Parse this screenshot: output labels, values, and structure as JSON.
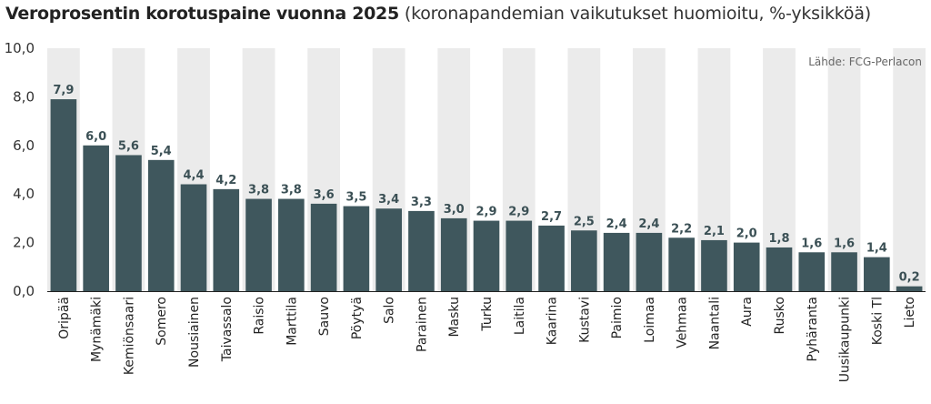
{
  "chart_data": {
    "type": "bar",
    "title": "Veroprosentin korotuspaine vuonna 2025",
    "subtitle": "(koronapandemian vaikutukset huomioitu, %-yksikköä)",
    "source": "Lähde: FCG-Perlacon",
    "categories": [
      "Oripää",
      "Mynämäki",
      "Kemiönsaari",
      "Somero",
      "Nousiainen",
      "Taivassalo",
      "Raisio",
      "Marttila",
      "Sauvo",
      "Pöytyä",
      "Salo",
      "Parainen",
      "Masku",
      "Turku",
      "Laitila",
      "Kaarina",
      "Kustavi",
      "Paimio",
      "Loimaa",
      "Vehmaa",
      "Naantali",
      "Aura",
      "Rusko",
      "Pyhäranta",
      "Uusikaupunki",
      "Koski Tl",
      "Lieto"
    ],
    "values": [
      7.9,
      6.0,
      5.6,
      5.4,
      4.4,
      4.2,
      3.8,
      3.8,
      3.6,
      3.5,
      3.4,
      3.3,
      3.0,
      2.9,
      2.9,
      2.7,
      2.5,
      2.4,
      2.4,
      2.2,
      2.1,
      2.0,
      1.8,
      1.6,
      1.6,
      1.4,
      0.2
    ],
    "value_labels": [
      "7,9",
      "6,0",
      "5,6",
      "5,4",
      "4,4",
      "4,2",
      "3,8",
      "3,8",
      "3,6",
      "3,5",
      "3,4",
      "3,3",
      "3,0",
      "2,9",
      "2,9",
      "2,7",
      "2,5",
      "2,4",
      "2,4",
      "2,2",
      "2,1",
      "2,0",
      "1,8",
      "1,6",
      "1,6",
      "1,4",
      "0,2"
    ],
    "yticks": [
      0,
      2,
      4,
      6,
      8,
      10
    ],
    "ytick_labels": [
      "0,0",
      "2,0",
      "4,0",
      "6,0",
      "8,0",
      "10,0"
    ],
    "ylim": [
      0,
      10
    ],
    "xlabel": "",
    "ylabel": "",
    "grid": false,
    "bar_color": "#3f575d",
    "band_color": "#ebebeb"
  }
}
